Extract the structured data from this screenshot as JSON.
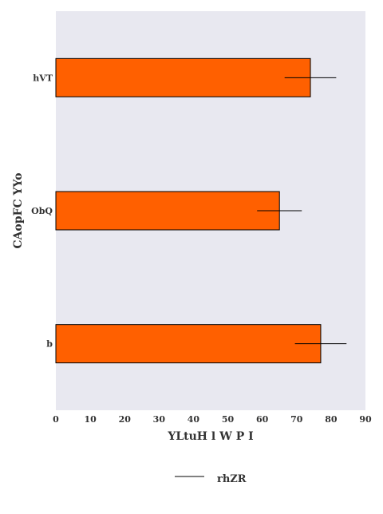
{
  "chart_data": {
    "type": "bar",
    "orientation": "horizontal",
    "categories": [
      "hVT",
      "ObQ",
      "b"
    ],
    "series": [
      {
        "values": [
          74,
          65,
          77
        ],
        "errors": [
          [
            7.5,
            7.5
          ],
          [
            6.5,
            6.5
          ],
          [
            7.5,
            7.5
          ]
        ],
        "color": "#ff6000"
      }
    ],
    "error_legend_label": "rhZR",
    "xlabel": "YLtuH l W P I",
    "ylabel": "CAopFC YYo",
    "xlim": [
      0,
      90
    ],
    "xticks": [
      "0",
      "10",
      "20",
      "30",
      "40",
      "50",
      "60",
      "70",
      "80",
      "90"
    ],
    "grid": false,
    "plot_background": "#e8e8f0",
    "legend_position": "bottom-center"
  }
}
